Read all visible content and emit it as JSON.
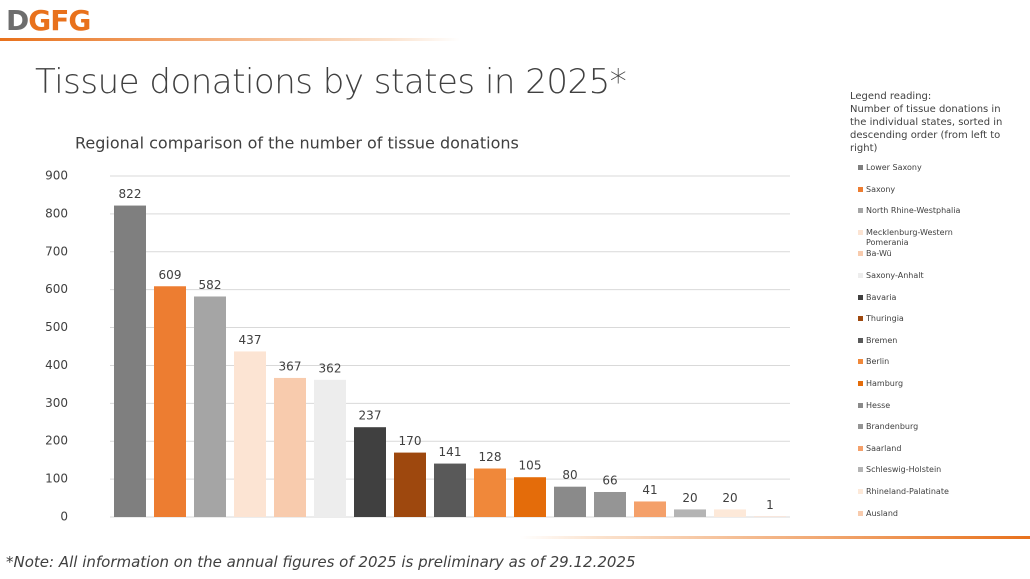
{
  "header": {
    "logo": "DGFG",
    "title": "Tissue donations by states in 2025*"
  },
  "chart_data": {
    "type": "bar",
    "title": "Regional comparison of the number of tissue donations",
    "categories": [
      "Lower Saxony",
      "Saxony",
      "North Rhine-Westphalia",
      "Mecklenburg-Western Pomerania",
      "Ba-Wü",
      "Saxony-Anhalt",
      "Bavaria",
      "Thuringia",
      "Bremen",
      "Berlin",
      "Hamburg",
      "Hesse",
      "Brandenburg",
      "Saarland",
      "Schleswig-Holstein",
      "Rhineland-Palatinate",
      "Ausland"
    ],
    "values": [
      822,
      609,
      582,
      437,
      367,
      362,
      237,
      170,
      141,
      128,
      105,
      80,
      66,
      41,
      20,
      20,
      1
    ],
    "colors": [
      "#7f7f7f",
      "#ed7d31",
      "#a5a5a5",
      "#fce4d3",
      "#f8cbad",
      "#ededed",
      "#404040",
      "#9e480e",
      "#595959",
      "#f0883a",
      "#e46c0a",
      "#8a8a8a",
      "#959595",
      "#f4a06a",
      "#b4b4b4",
      "#fde9d9",
      "#f8cbad"
    ],
    "ylim": [
      0,
      900
    ],
    "yticks": [
      0,
      100,
      200,
      300,
      400,
      500,
      600,
      700,
      800,
      900
    ],
    "grid": true,
    "legend_position": "right",
    "legend_heading": "Legend reading:",
    "legend_note": "Number of tissue donations in the individual states, sorted in descending order (from left to right)"
  },
  "footnote": "*Note: All information on the annual figures of 2025 is preliminary as of 29.12.2025"
}
